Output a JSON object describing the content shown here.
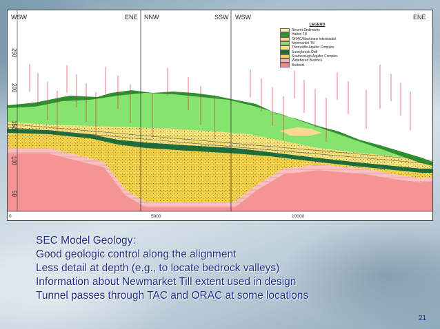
{
  "diagram": {
    "direction_labels": [
      "WSW",
      "ENE",
      "NNW",
      "SSW",
      "WSW",
      "ENE"
    ],
    "y_ticks": [
      "250",
      "200",
      "150",
      "100",
      "50"
    ],
    "x_ticks": [
      "0",
      "5000",
      "10000"
    ],
    "legend": {
      "title": "LEGEND",
      "items": [
        {
          "label": "Recent Sediments",
          "color": "#f3eca3"
        },
        {
          "label": "Halton Till",
          "color": "#2f8f2f"
        },
        {
          "label": "ORAC/Mackinaw Interstadial",
          "color": "#f6d88a"
        },
        {
          "label": "Newmarket Till",
          "color": "#7fe06a"
        },
        {
          "label": "Thorncliffe Aquifer Complex",
          "color": "#f3e27a"
        },
        {
          "label": "Sunnybrook Drift",
          "color": "#1f6b3a"
        },
        {
          "label": "Scarborough Aquifer Complex",
          "color": "#f0d24e"
        },
        {
          "label": "Weathered Bedrock",
          "color": "#f6b2b2"
        },
        {
          "label": "Bedrock",
          "color": "#f28a8a"
        }
      ]
    },
    "colors": {
      "bedrock": "#f49494",
      "weathered_bedrock": "#f8c0c0",
      "scarborough": "#f2d24a",
      "sunnybrook": "#1f6b3a",
      "thorncliffe": "#f5e27e",
      "newmarket": "#86e46e",
      "halton": "#2f8f2f",
      "orac": "#f7dc8f",
      "recent": "#f3eca3",
      "borehole": "#cc2233"
    }
  },
  "bullets": [
    "SEC Model Geology:",
    "Good geologic control along the alignment",
    "Less detail at depth (e.g., to locate bedrock valleys)",
    "Information about Newmarket Till extent used in design",
    "Tunnel passes through TAC and ORAC at some locations"
  ],
  "slide_number": "21"
}
